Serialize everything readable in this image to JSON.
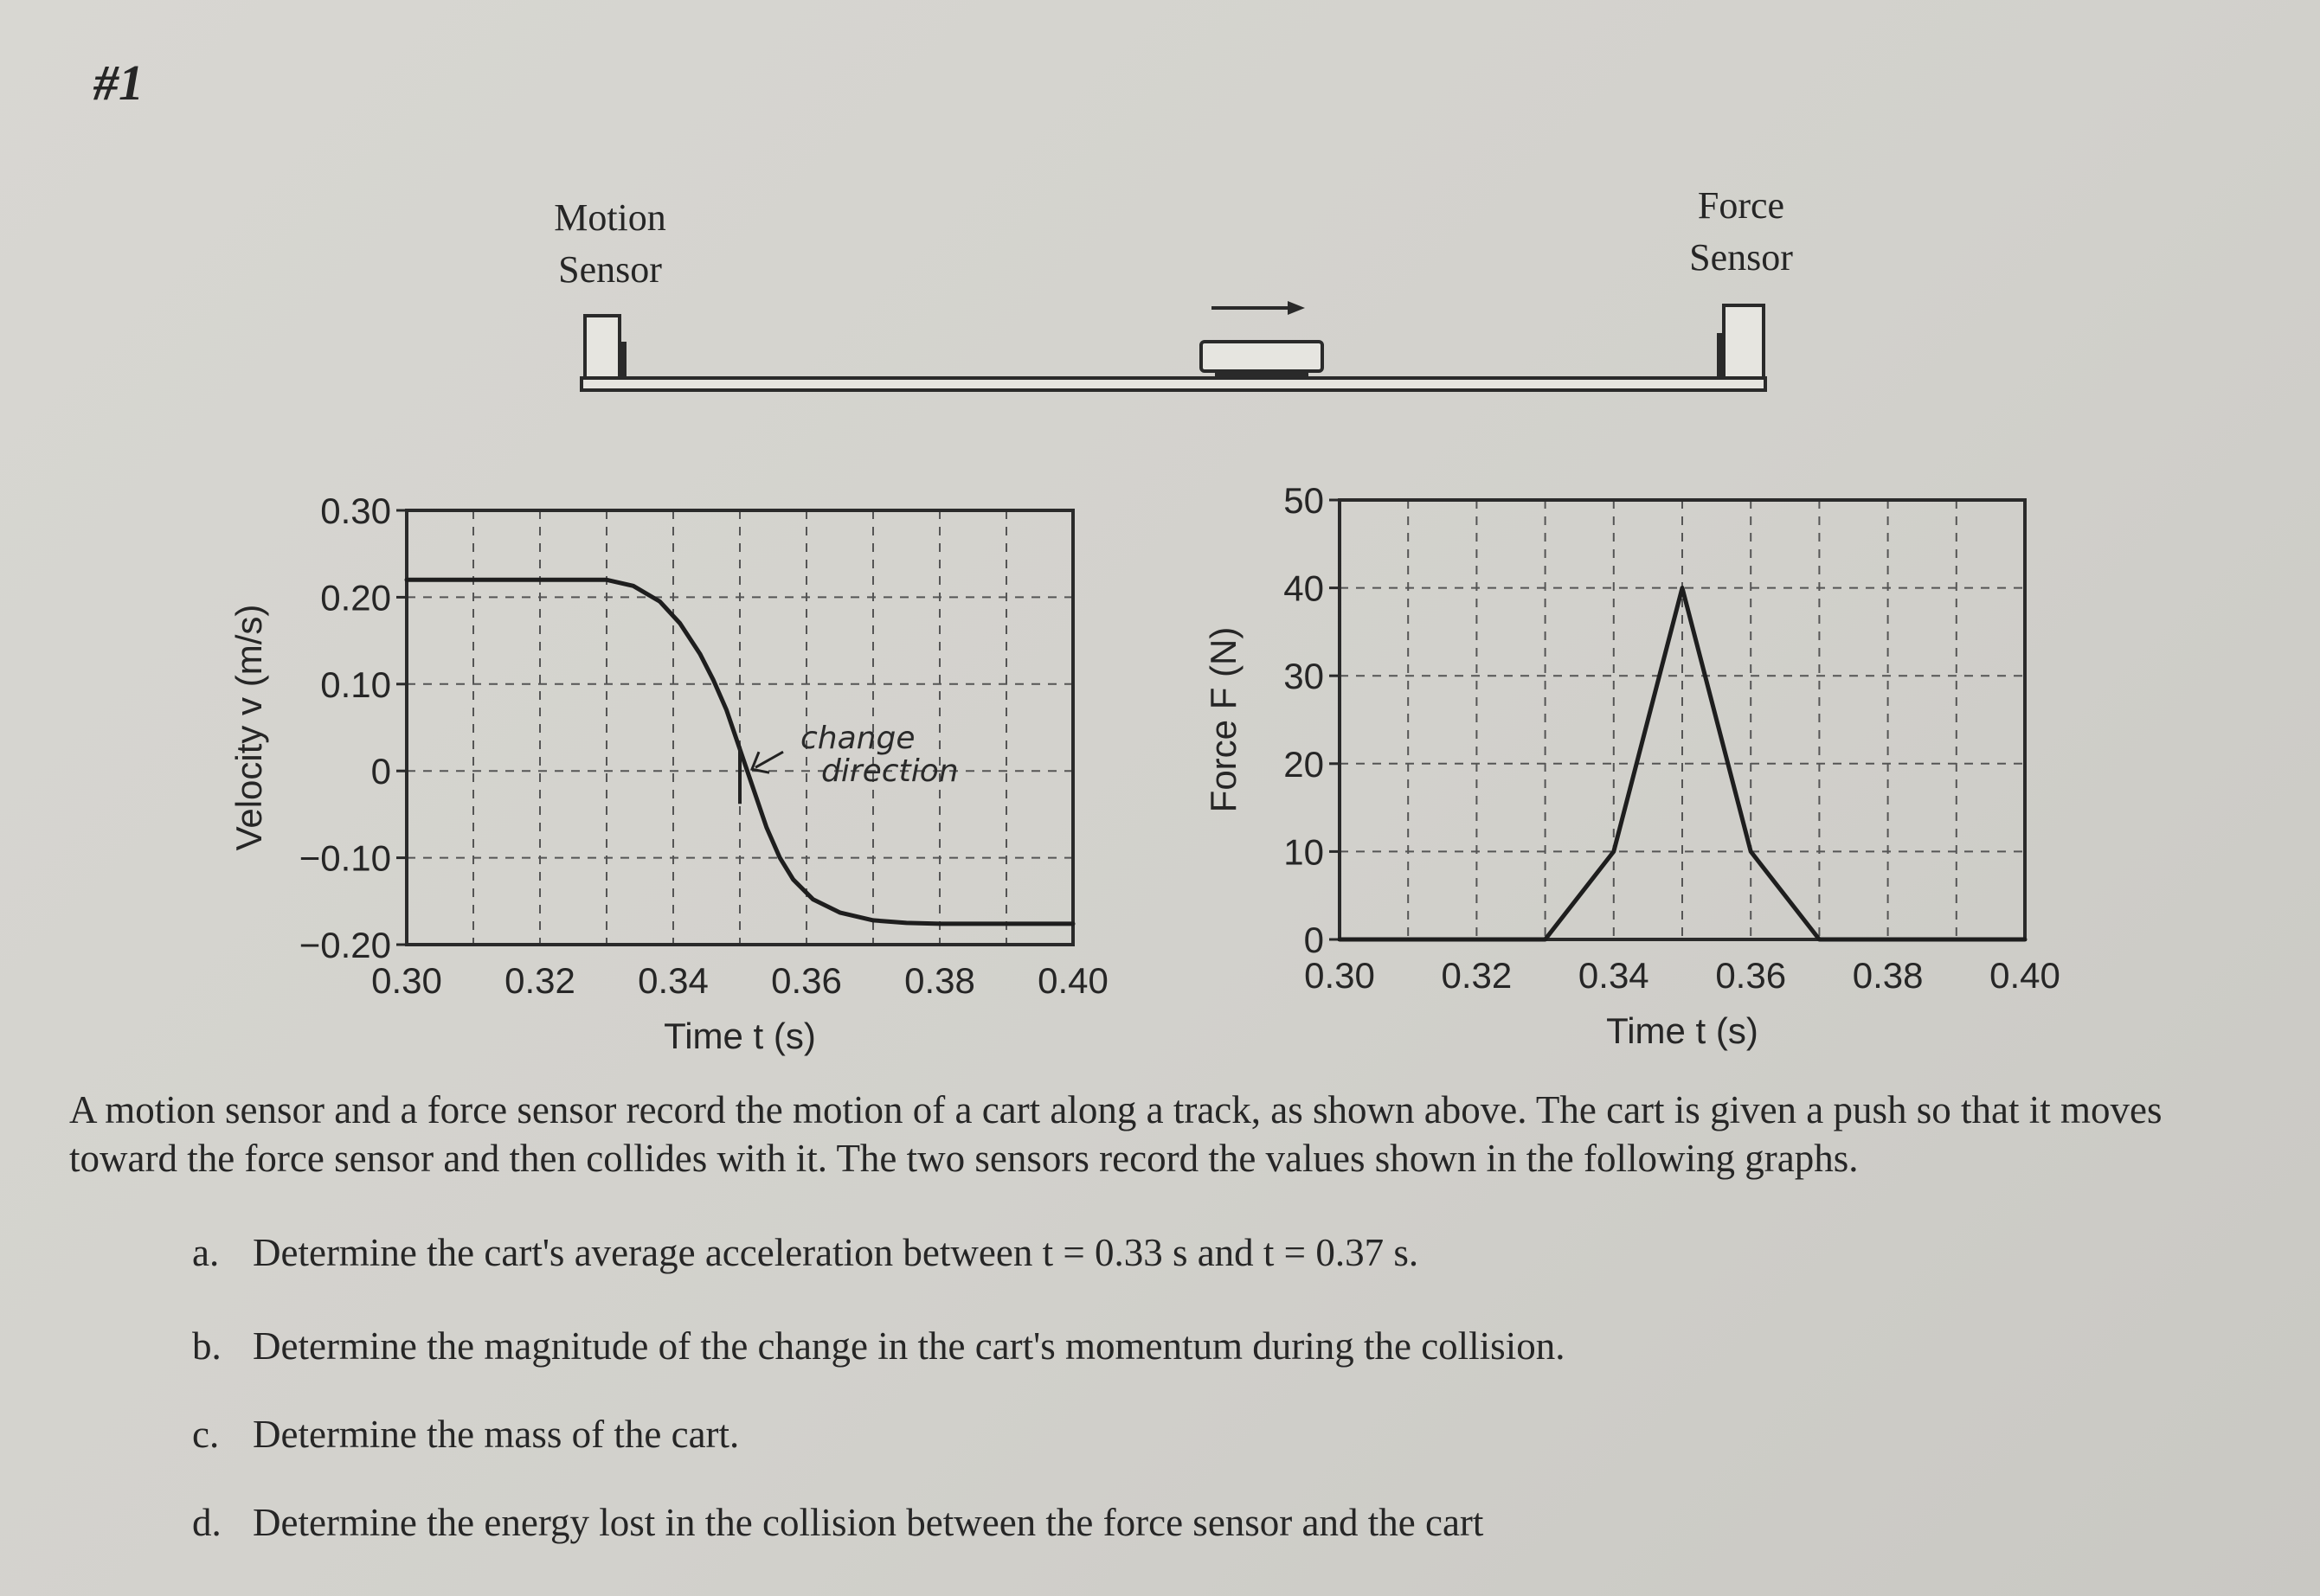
{
  "problem_number": "#1",
  "diagram": {
    "motion_sensor_label": [
      "Motion",
      "Sensor"
    ],
    "force_sensor_label": [
      "Force",
      "Sensor"
    ]
  },
  "chart_data": [
    {
      "type": "line",
      "ylabel": "Velocity v (m/s)",
      "xlabel": "Time t (s)",
      "xlim": [
        0.3,
        0.4
      ],
      "ylim": [
        -0.2,
        0.3
      ],
      "x_ticks": [
        "0.30",
        "0.32",
        "0.34",
        "0.36",
        "0.38",
        "0.40"
      ],
      "y_ticks": [
        "0.30",
        "0.20",
        "0.10",
        "0",
        "−0.10",
        "−0.20"
      ],
      "grid": true,
      "series": [
        {
          "x": [
            0.3,
            0.33,
            0.334,
            0.338,
            0.341,
            0.344,
            0.346,
            0.348,
            0.35,
            0.352,
            0.354,
            0.356,
            0.358,
            0.361,
            0.365,
            0.37,
            0.375,
            0.38,
            0.4
          ],
          "y": [
            0.22,
            0.22,
            0.213,
            0.195,
            0.17,
            0.135,
            0.105,
            0.07,
            0.025,
            -0.02,
            -0.065,
            -0.1,
            -0.125,
            -0.148,
            -0.163,
            -0.172,
            -0.175,
            -0.176,
            -0.176
          ]
        }
      ],
      "annotations": [
        {
          "text_lines": [
            "change",
            "direction"
          ],
          "handwritten": true,
          "points_to": [
            0.35,
            0.0
          ]
        }
      ]
    },
    {
      "type": "line",
      "ylabel": "Force F (N)",
      "xlabel": "Time t (s)",
      "xlim": [
        0.3,
        0.4
      ],
      "ylim": [
        0,
        50
      ],
      "x_ticks": [
        "0.30",
        "0.32",
        "0.34",
        "0.36",
        "0.38",
        "0.40"
      ],
      "y_ticks": [
        "50",
        "40",
        "30",
        "20",
        "10",
        "0"
      ],
      "grid": true,
      "series": [
        {
          "x": [
            0.3,
            0.33,
            0.34,
            0.35,
            0.36,
            0.37,
            0.4
          ],
          "y": [
            0,
            0,
            10,
            40,
            10,
            0,
            0
          ]
        }
      ]
    }
  ],
  "text": {
    "description": "A motion sensor and a force sensor record the motion of a cart along a track, as shown above. The cart is given a push so that it moves toward the force sensor and then collides with it. The two sensors record the values shown in the following graphs.",
    "questions": [
      {
        "letter": "a.",
        "text": "Determine the cart's average acceleration between t = 0.33 s and t = 0.37 s."
      },
      {
        "letter": "b.",
        "text": "Determine the magnitude of the change in the cart's momentum during the collision."
      },
      {
        "letter": "c.",
        "text": "Determine the mass of the cart."
      },
      {
        "letter": "d.",
        "text": "Determine the energy lost in the collision between the force sensor and the cart"
      }
    ]
  }
}
